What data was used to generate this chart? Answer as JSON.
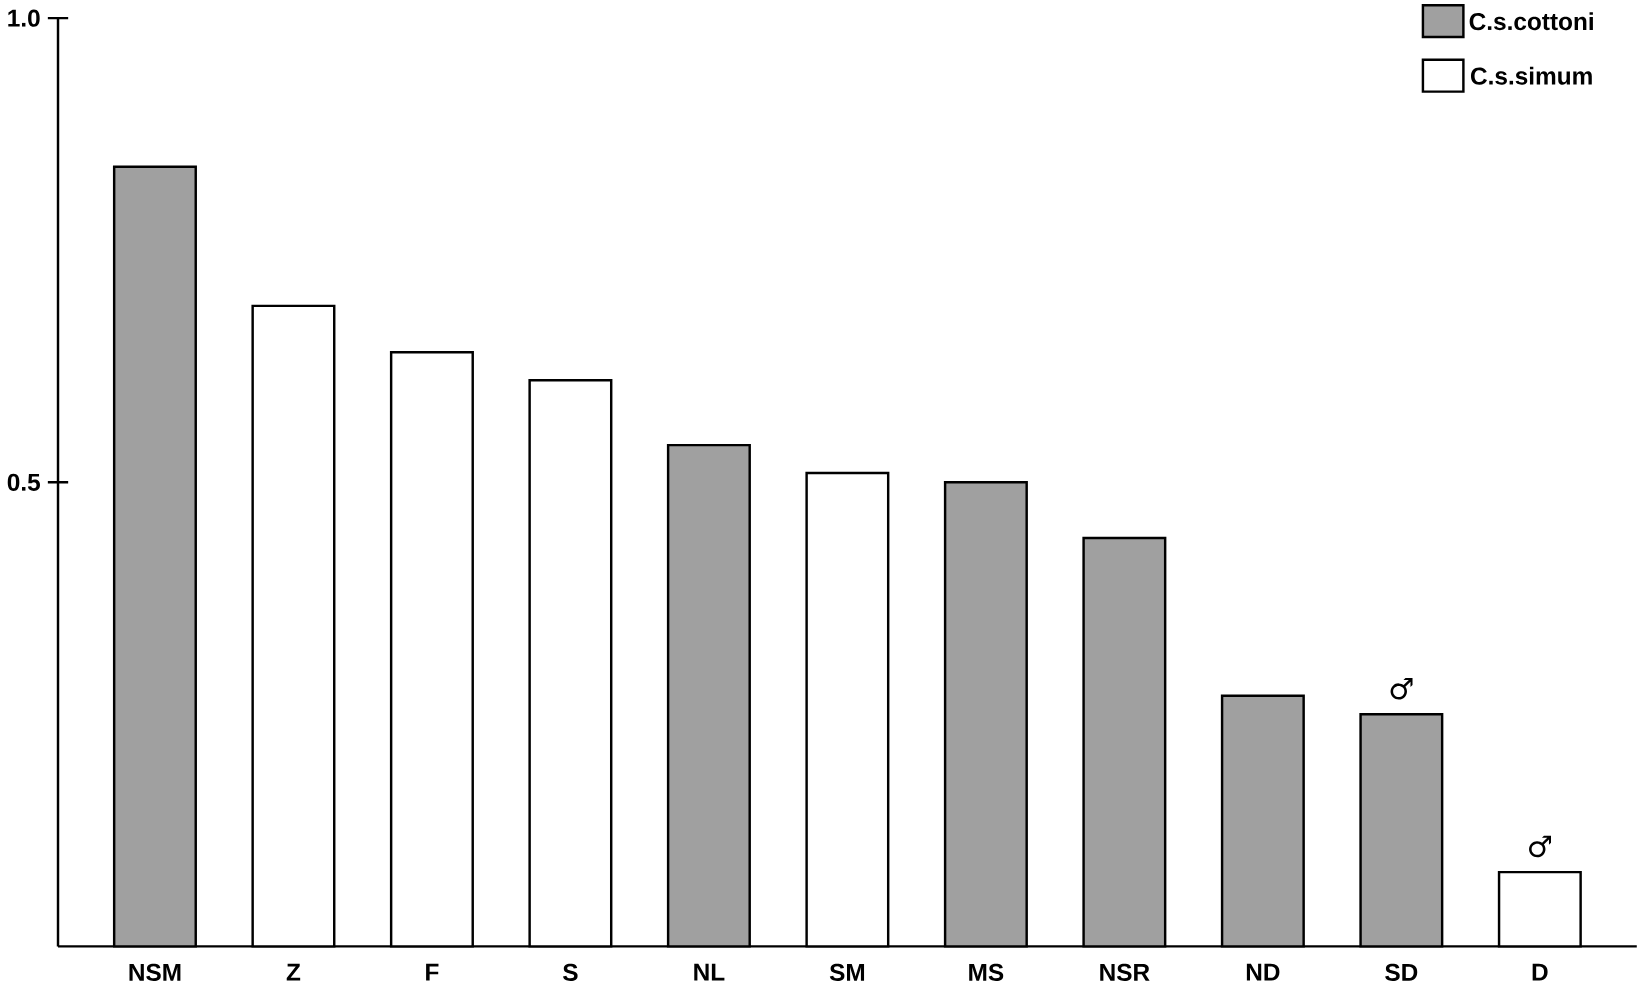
{
  "chart_data": {
    "type": "bar",
    "categories": [
      "NSM",
      "Z",
      "F",
      "S",
      "NL",
      "SM",
      "MS",
      "NSR",
      "ND",
      "SD",
      "D"
    ],
    "series": [
      {
        "name": "C.s.cottoni",
        "color": "#a0a0a0",
        "values": [
          0.84,
          null,
          null,
          null,
          0.54,
          null,
          0.5,
          0.44,
          0.27,
          0.25,
          null
        ]
      },
      {
        "name": "C.s.simum",
        "color": "#ffffff",
        "values": [
          null,
          0.69,
          0.64,
          0.61,
          null,
          0.51,
          null,
          null,
          null,
          null,
          0.08
        ]
      }
    ],
    "ylim": [
      0,
      1.0
    ],
    "yticks": [
      0.5,
      {
        "value": 1.0,
        "label": "1.0"
      }
    ],
    "legend": "top right",
    "grid": false,
    "annotations": [
      {
        "text": "♂",
        "x": "SD",
        "y": 0.25
      },
      {
        "text": "♂",
        "x": "D",
        "y": 0.08
      }
    ]
  }
}
